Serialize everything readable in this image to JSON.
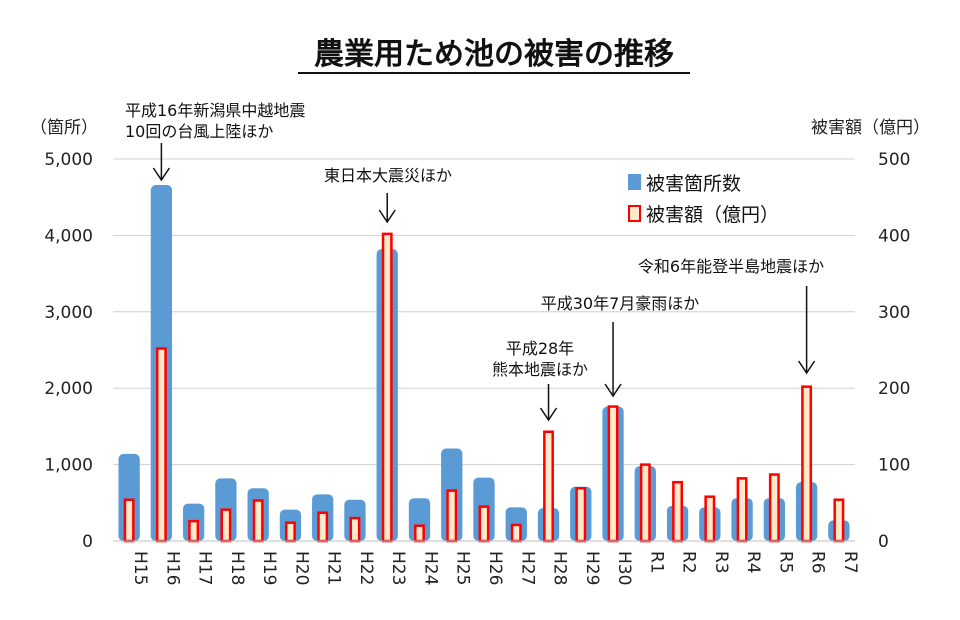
{
  "chart_data": {
    "type": "bar",
    "title": "農業用ため池の被害の推移",
    "left_axis_unit": "（箇所）",
    "right_axis_unit": "被害額（億円）",
    "categories": [
      "H15",
      "H16",
      "H17",
      "H18",
      "H19",
      "H20",
      "H21",
      "H22",
      "H23",
      "H24",
      "H25",
      "H26",
      "H27",
      "H28",
      "H29",
      "H30",
      "R1",
      "R2",
      "R3",
      "R4",
      "R5",
      "R6",
      "R7"
    ],
    "series": [
      {
        "name": "被害箇所数",
        "axis": "left",
        "color": "#5b9bd5",
        "values": [
          1140,
          4660,
          490,
          820,
          690,
          410,
          610,
          540,
          3820,
          560,
          1210,
          830,
          440,
          430,
          710,
          1760,
          980,
          460,
          440,
          560,
          560,
          770,
          270
        ]
      },
      {
        "name": "被害額（億円）",
        "axis": "right",
        "color": "#ff0000",
        "fill": "#ffe9c8",
        "values": [
          54,
          252,
          26,
          41,
          53,
          24,
          37,
          30,
          402,
          20,
          66,
          45,
          21,
          143,
          69,
          176,
          100,
          77,
          58,
          82,
          87,
          202,
          54
        ]
      }
    ],
    "ylim_left": [
      0,
      5000
    ],
    "ylim_right": [
      0,
      500
    ],
    "yticks_left": [
      "0",
      "1,000",
      "2,000",
      "3,000",
      "4,000",
      "5,000"
    ],
    "yticks_right": [
      "0",
      "100",
      "200",
      "300",
      "400",
      "500"
    ],
    "grid": true,
    "legend_position": "top-right",
    "annotations": [
      {
        "category": "H16",
        "lines": [
          "平成16年新潟県中越地震",
          "10回の台風上陸ほか"
        ]
      },
      {
        "category": "H23",
        "lines": [
          "東日本大震災ほか"
        ]
      },
      {
        "category": "H28",
        "lines": [
          "平成28年",
          "熊本地震ほか"
        ]
      },
      {
        "category": "H30",
        "lines": [
          "平成30年7月豪雨ほか"
        ]
      },
      {
        "category": "R6",
        "lines": [
          "令和6年能登半島地震ほか"
        ]
      }
    ]
  }
}
